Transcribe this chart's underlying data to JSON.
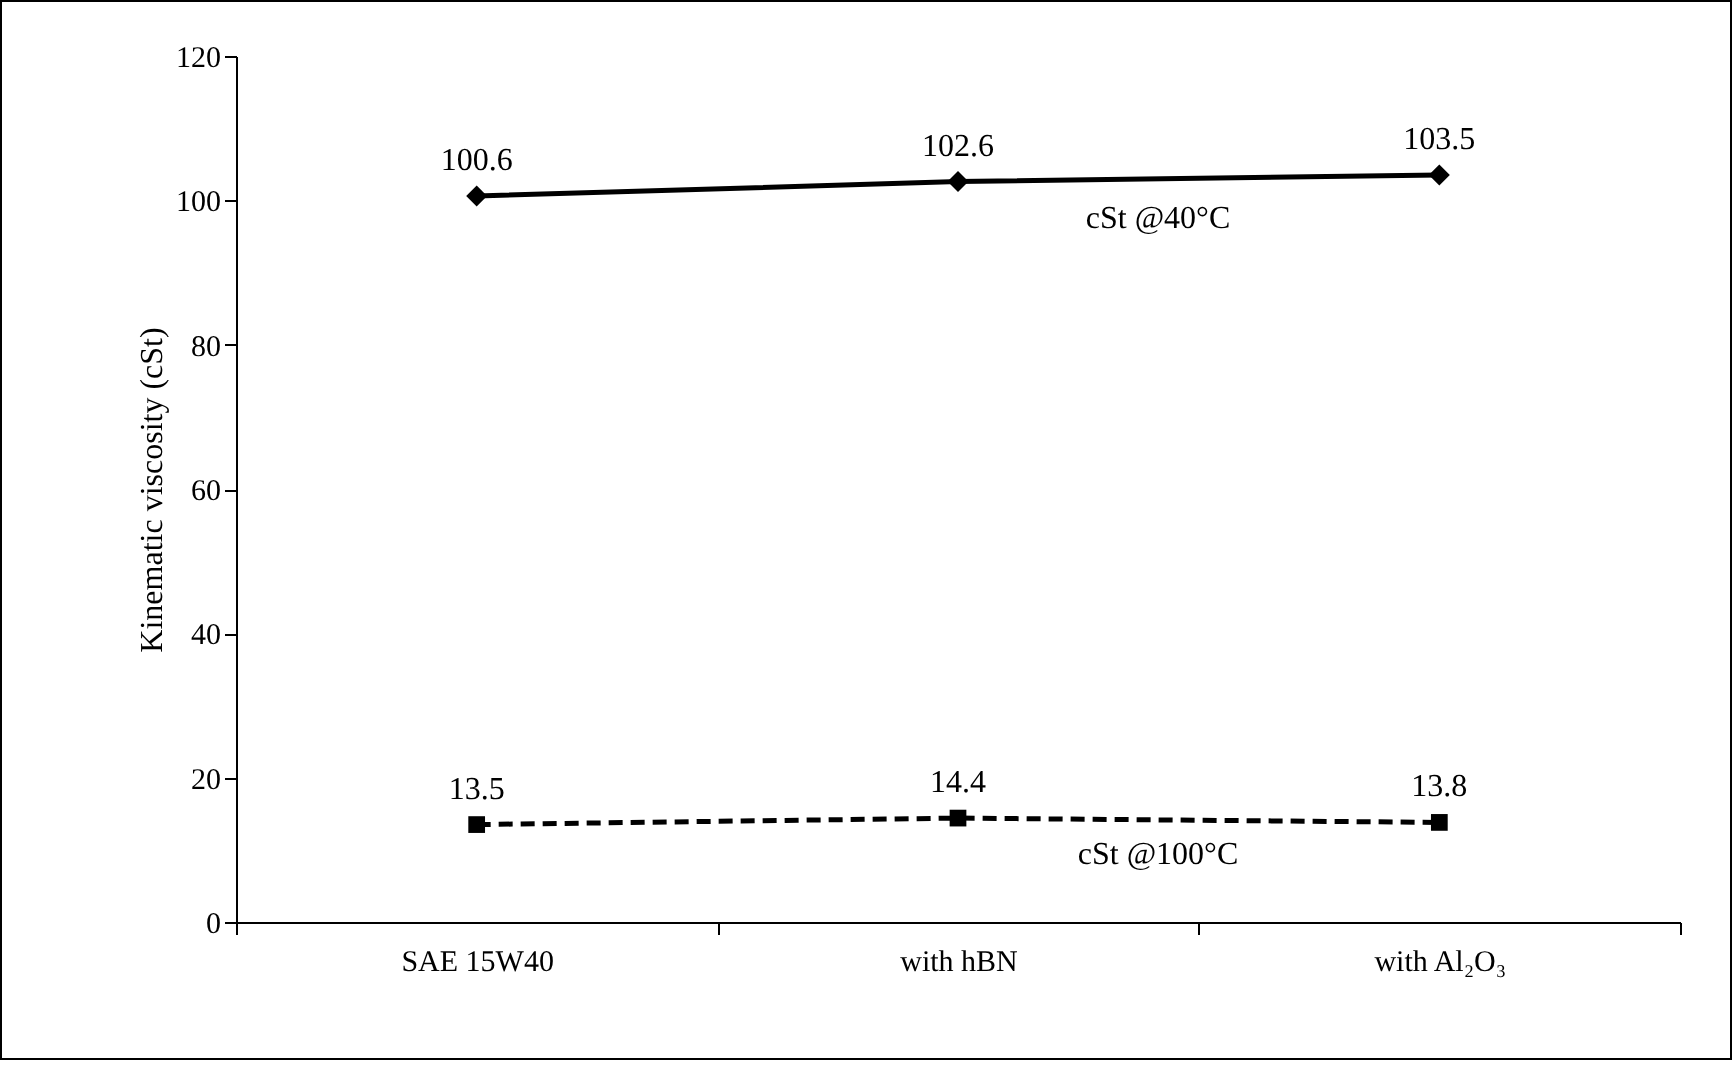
{
  "chart_data": {
    "type": "line",
    "ylabel": "Kinematic viscosity (cSt)",
    "categories": [
      "SAE 15W40",
      "with hBN",
      "with Al₂O₃"
    ],
    "series": [
      {
        "name": "cSt @40°C",
        "color": "#000000",
        "values": [
          100.6,
          102.6,
          103.5
        ],
        "marker": "diamond",
        "line_style": "solid"
      },
      {
        "name": "cSt @100°C",
        "color": "#000000",
        "values": [
          13.5,
          14.4,
          13.8
        ],
        "marker": "square",
        "line_style": "dashed"
      }
    ],
    "ylim": [
      0,
      120
    ],
    "yticks": [
      0,
      20,
      40,
      60,
      80,
      100,
      120
    ],
    "grid": false,
    "data_labels": true
  }
}
